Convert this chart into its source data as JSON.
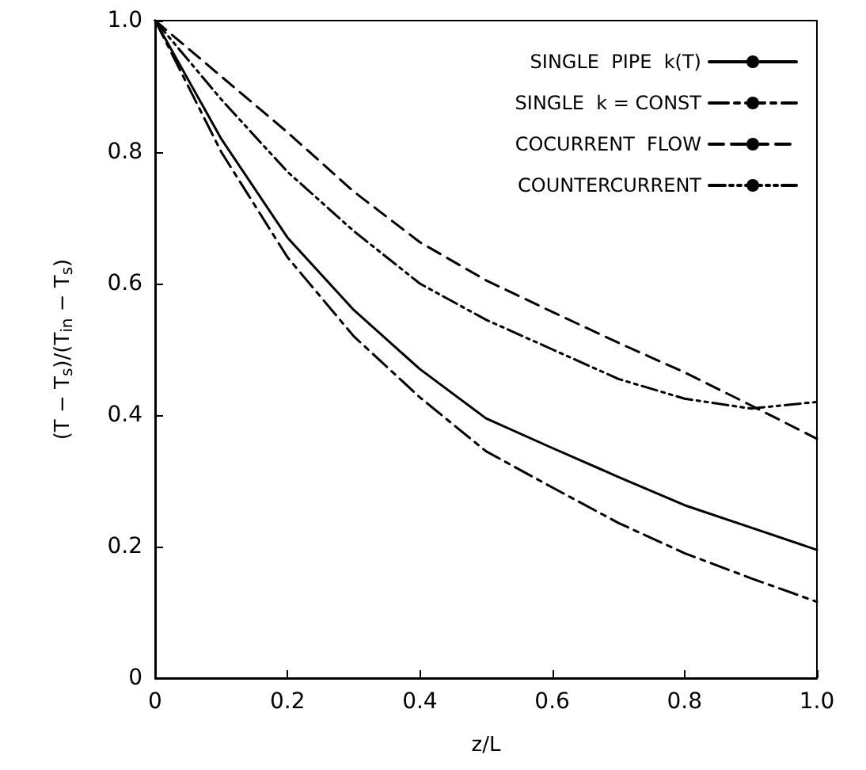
{
  "chart_data": {
    "type": "line",
    "xlabel": "z/L",
    "ylabel": "(T − T$_{s}$)/(T$_{in}$ − T$_{s}$)",
    "x": [
      0,
      0.1,
      0.2,
      0.3,
      0.4,
      0.5,
      0.6,
      0.7,
      0.8,
      0.9,
      1.0
    ],
    "series": [
      {
        "name": "SINGLE  PIPE  k(T)",
        "color": "#000000",
        "line_style": "solid",
        "values": [
          1,
          0.82,
          0.67,
          0.56,
          0.47,
          0.395,
          0.35,
          0.306,
          0.263,
          0.229,
          0.195
        ]
      },
      {
        "name": "SINGLE  k = CONST",
        "color": "#000000",
        "line_style": "dashdot",
        "values": [
          1,
          0.8,
          0.64,
          0.52,
          0.427,
          0.345,
          0.29,
          0.236,
          0.19,
          0.152,
          0.116
        ]
      },
      {
        "name": "COCURRENT  FLOW",
        "color": "#000000",
        "line_style": "dashed",
        "values": [
          1,
          0.915,
          0.83,
          0.74,
          0.663,
          0.605,
          0.557,
          0.51,
          0.465,
          0.415,
          0.364
        ]
      },
      {
        "name": "COUNTERCURRENT",
        "color": "#000000",
        "line_style": "dashdotdot",
        "values": [
          1,
          0.88,
          0.77,
          0.68,
          0.6,
          0.545,
          0.5,
          0.455,
          0.425,
          0.41,
          0.42
        ]
      }
    ],
    "xlim": [
      0,
      1.0
    ],
    "ylim": [
      0,
      1.0
    ],
    "xticks": [
      0,
      0.2,
      0.4,
      0.6,
      0.8,
      {
        "value": 1,
        "label": "1.0"
      }
    ],
    "yticks": [
      0,
      0.2,
      0.4,
      0.6,
      0.8,
      {
        "value": 1,
        "label": "1.0"
      }
    ],
    "grid": false,
    "legend": "top right",
    "marker": "none"
  }
}
